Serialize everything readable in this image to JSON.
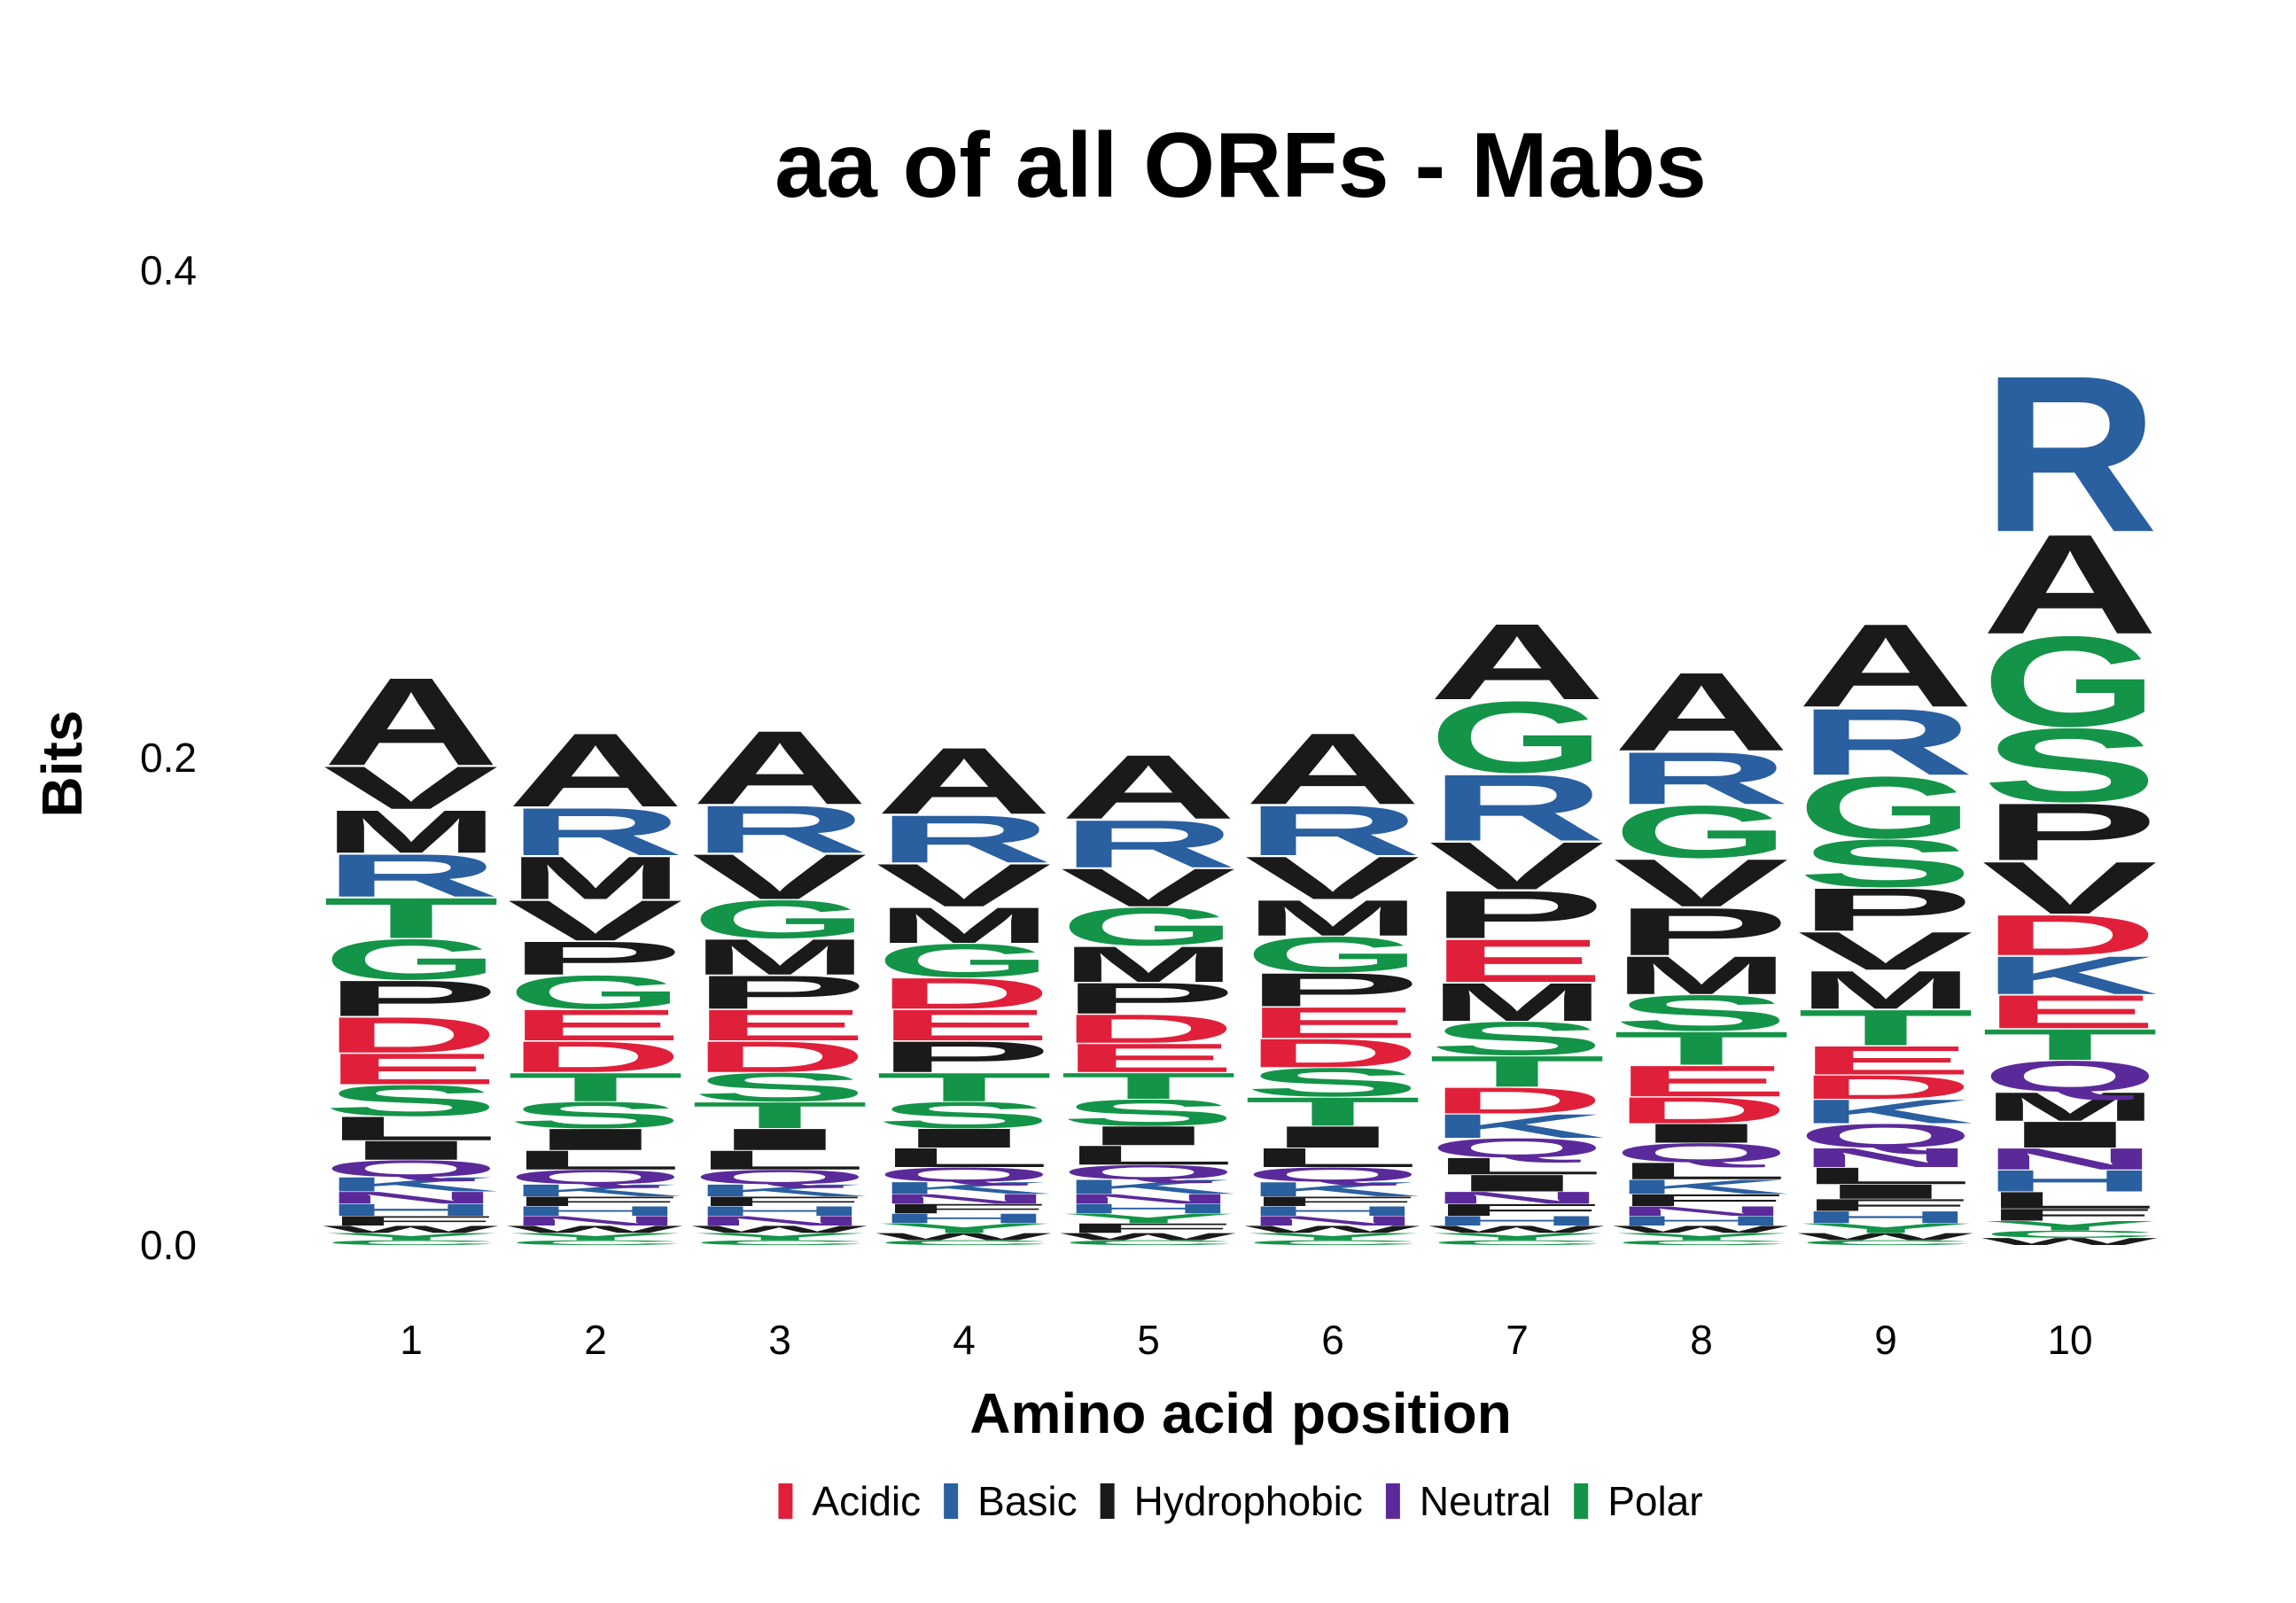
{
  "chart_data": {
    "type": "sequence-logo",
    "title": "aa of all ORFs - Mabs",
    "xlabel": "Amino acid position",
    "ylabel": "Bits",
    "ylim": [
      0,
      0.4
    ],
    "yticks": [
      "0.0",
      "0.2",
      "0.4"
    ],
    "grid": false,
    "legend_position": "bottom",
    "legend": [
      {
        "name": "Acidic",
        "color": "#e0203a"
      },
      {
        "name": "Basic",
        "color": "#2a5fa0"
      },
      {
        "name": "Hydrophobic",
        "color": "#1a1a1a"
      },
      {
        "name": "Neutral",
        "color": "#5b2a9a"
      },
      {
        "name": "Polar",
        "color": "#149448"
      }
    ],
    "groups": {
      "A": "Hydrophobic",
      "G": "Polar",
      "R": "Basic",
      "M": "Hydrophobic",
      "V": "Hydrophobic",
      "T": "Polar",
      "D": "Acidic",
      "P": "Hydrophobic",
      "S": "Polar",
      "E": "Acidic",
      "L": "Hydrophobic",
      "I": "Hydrophobic",
      "Q": "Neutral",
      "K": "Basic",
      "H": "Basic",
      "N": "Neutral",
      "F": "Hydrophobic",
      "Y": "Polar",
      "W": "Hydrophobic",
      "C": "Polar"
    },
    "positions": [
      {
        "label": "1",
        "letters": [
          {
            "aa": "A",
            "bits": 0.037
          },
          {
            "aa": "G",
            "bits": 0.017
          },
          {
            "aa": "R",
            "bits": 0.018
          },
          {
            "aa": "M",
            "bits": 0.018
          },
          {
            "aa": "V",
            "bits": 0.018
          },
          {
            "aa": "T",
            "bits": 0.017
          },
          {
            "aa": "D",
            "bits": 0.015
          },
          {
            "aa": "P",
            "bits": 0.015
          },
          {
            "aa": "S",
            "bits": 0.013
          },
          {
            "aa": "E",
            "bits": 0.013
          },
          {
            "aa": "L",
            "bits": 0.01
          },
          {
            "aa": "I",
            "bits": 0.008
          },
          {
            "aa": "Q",
            "bits": 0.007
          },
          {
            "aa": "K",
            "bits": 0.006
          },
          {
            "aa": "H",
            "bits": 0.005
          },
          {
            "aa": "N",
            "bits": 0.005
          },
          {
            "aa": "F",
            "bits": 0.004
          },
          {
            "aa": "Y",
            "bits": 0.003
          },
          {
            "aa": "W",
            "bits": 0.003
          },
          {
            "aa": "C",
            "bits": 0.002
          }
        ]
      },
      {
        "label": "2",
        "letters": [
          {
            "aa": "A",
            "bits": 0.031
          },
          {
            "aa": "R",
            "bits": 0.02
          },
          {
            "aa": "M",
            "bits": 0.018
          },
          {
            "aa": "V",
            "bits": 0.017
          },
          {
            "aa": "G",
            "bits": 0.014
          },
          {
            "aa": "P",
            "bits": 0.014
          },
          {
            "aa": "D",
            "bits": 0.013
          },
          {
            "aa": "E",
            "bits": 0.013
          },
          {
            "aa": "T",
            "bits": 0.012
          },
          {
            "aa": "S",
            "bits": 0.011
          },
          {
            "aa": "I",
            "bits": 0.009
          },
          {
            "aa": "L",
            "bits": 0.008
          },
          {
            "aa": "Q",
            "bits": 0.006
          },
          {
            "aa": "K",
            "bits": 0.005
          },
          {
            "aa": "N",
            "bits": 0.004
          },
          {
            "aa": "H",
            "bits": 0.004
          },
          {
            "aa": "F",
            "bits": 0.004
          },
          {
            "aa": "Y",
            "bits": 0.003
          },
          {
            "aa": "W",
            "bits": 0.003
          },
          {
            "aa": "C",
            "bits": 0.002
          }
        ]
      },
      {
        "label": "3",
        "letters": [
          {
            "aa": "A",
            "bits": 0.031
          },
          {
            "aa": "R",
            "bits": 0.02
          },
          {
            "aa": "V",
            "bits": 0.019
          },
          {
            "aa": "G",
            "bits": 0.016
          },
          {
            "aa": "M",
            "bits": 0.015
          },
          {
            "aa": "P",
            "bits": 0.014
          },
          {
            "aa": "D",
            "bits": 0.013
          },
          {
            "aa": "E",
            "bits": 0.013
          },
          {
            "aa": "S",
            "bits": 0.012
          },
          {
            "aa": "T",
            "bits": 0.011
          },
          {
            "aa": "I",
            "bits": 0.009
          },
          {
            "aa": "L",
            "bits": 0.008
          },
          {
            "aa": "Q",
            "bits": 0.006
          },
          {
            "aa": "K",
            "bits": 0.005
          },
          {
            "aa": "N",
            "bits": 0.004
          },
          {
            "aa": "H",
            "bits": 0.004
          },
          {
            "aa": "F",
            "bits": 0.004
          },
          {
            "aa": "Y",
            "bits": 0.003
          },
          {
            "aa": "W",
            "bits": 0.003
          },
          {
            "aa": "C",
            "bits": 0.002
          }
        ]
      },
      {
        "label": "4",
        "letters": [
          {
            "aa": "A",
            "bits": 0.028
          },
          {
            "aa": "R",
            "bits": 0.02
          },
          {
            "aa": "V",
            "bits": 0.018
          },
          {
            "aa": "M",
            "bits": 0.015
          },
          {
            "aa": "G",
            "bits": 0.014
          },
          {
            "aa": "P",
            "bits": 0.013
          },
          {
            "aa": "E",
            "bits": 0.013
          },
          {
            "aa": "T",
            "bits": 0.012
          },
          {
            "aa": "S",
            "bits": 0.011
          },
          {
            "aa": "D",
            "bits": 0.013
          },
          {
            "aa": "L",
            "bits": 0.008
          },
          {
            "aa": "I",
            "bits": 0.008
          },
          {
            "aa": "Q",
            "bits": 0.006
          },
          {
            "aa": "K",
            "bits": 0.005
          },
          {
            "aa": "Y",
            "bits": 0.004
          },
          {
            "aa": "H",
            "bits": 0.004
          },
          {
            "aa": "F",
            "bits": 0.004
          },
          {
            "aa": "N",
            "bits": 0.004
          },
          {
            "aa": "W",
            "bits": 0.003
          },
          {
            "aa": "C",
            "bits": 0.002
          }
        ]
      },
      {
        "label": "5",
        "letters": [
          {
            "aa": "A",
            "bits": 0.027
          },
          {
            "aa": "R",
            "bits": 0.02
          },
          {
            "aa": "G",
            "bits": 0.016
          },
          {
            "aa": "V",
            "bits": 0.016
          },
          {
            "aa": "M",
            "bits": 0.015
          },
          {
            "aa": "P",
            "bits": 0.013
          },
          {
            "aa": "E",
            "bits": 0.012
          },
          {
            "aa": "S",
            "bits": 0.011
          },
          {
            "aa": "T",
            "bits": 0.011
          },
          {
            "aa": "D",
            "bits": 0.012
          },
          {
            "aa": "L",
            "bits": 0.008
          },
          {
            "aa": "I",
            "bits": 0.008
          },
          {
            "aa": "K",
            "bits": 0.006
          },
          {
            "aa": "Q",
            "bits": 0.006
          },
          {
            "aa": "F",
            "bits": 0.004
          },
          {
            "aa": "Y",
            "bits": 0.004
          },
          {
            "aa": "H",
            "bits": 0.004
          },
          {
            "aa": "N",
            "bits": 0.004
          },
          {
            "aa": "W",
            "bits": 0.003
          },
          {
            "aa": "C",
            "bits": 0.002
          }
        ]
      },
      {
        "label": "6",
        "letters": [
          {
            "aa": "A",
            "bits": 0.03
          },
          {
            "aa": "R",
            "bits": 0.021
          },
          {
            "aa": "V",
            "bits": 0.018
          },
          {
            "aa": "G",
            "bits": 0.015
          },
          {
            "aa": "M",
            "bits": 0.015
          },
          {
            "aa": "P",
            "bits": 0.014
          },
          {
            "aa": "E",
            "bits": 0.013
          },
          {
            "aa": "T",
            "bits": 0.012
          },
          {
            "aa": "S",
            "bits": 0.012
          },
          {
            "aa": "D",
            "bits": 0.012
          },
          {
            "aa": "I",
            "bits": 0.009
          },
          {
            "aa": "L",
            "bits": 0.008
          },
          {
            "aa": "K",
            "bits": 0.006
          },
          {
            "aa": "Q",
            "bits": 0.006
          },
          {
            "aa": "N",
            "bits": 0.004
          },
          {
            "aa": "H",
            "bits": 0.004
          },
          {
            "aa": "F",
            "bits": 0.004
          },
          {
            "aa": "Y",
            "bits": 0.003
          },
          {
            "aa": "W",
            "bits": 0.003
          },
          {
            "aa": "C",
            "bits": 0.002
          }
        ]
      },
      {
        "label": "7",
        "letters": [
          {
            "aa": "A",
            "bits": 0.032
          },
          {
            "aa": "G",
            "bits": 0.03
          },
          {
            "aa": "R",
            "bits": 0.028
          },
          {
            "aa": "P",
            "bits": 0.02
          },
          {
            "aa": "V",
            "bits": 0.02
          },
          {
            "aa": "E",
            "bits": 0.018
          },
          {
            "aa": "M",
            "bits": 0.016
          },
          {
            "aa": "S",
            "bits": 0.014
          },
          {
            "aa": "T",
            "bits": 0.013
          },
          {
            "aa": "D",
            "bits": 0.011
          },
          {
            "aa": "K",
            "bits": 0.01
          },
          {
            "aa": "Q",
            "bits": 0.008
          },
          {
            "aa": "I",
            "bits": 0.007
          },
          {
            "aa": "L",
            "bits": 0.007
          },
          {
            "aa": "F",
            "bits": 0.005
          },
          {
            "aa": "N",
            "bits": 0.005
          },
          {
            "aa": "H",
            "bits": 0.004
          },
          {
            "aa": "Y",
            "bits": 0.003
          },
          {
            "aa": "W",
            "bits": 0.003
          },
          {
            "aa": "C",
            "bits": 0.002
          }
        ]
      },
      {
        "label": "8",
        "letters": [
          {
            "aa": "A",
            "bits": 0.033
          },
          {
            "aa": "G",
            "bits": 0.022
          },
          {
            "aa": "R",
            "bits": 0.022
          },
          {
            "aa": "P",
            "bits": 0.02
          },
          {
            "aa": "V",
            "bits": 0.02
          },
          {
            "aa": "S",
            "bits": 0.015
          },
          {
            "aa": "M",
            "bits": 0.016
          },
          {
            "aa": "T",
            "bits": 0.014
          },
          {
            "aa": "E",
            "bits": 0.013
          },
          {
            "aa": "D",
            "bits": 0.011
          },
          {
            "aa": "Q",
            "bits": 0.008
          },
          {
            "aa": "I",
            "bits": 0.008
          },
          {
            "aa": "L",
            "bits": 0.007
          },
          {
            "aa": "K",
            "bits": 0.006
          },
          {
            "aa": "F",
            "bits": 0.005
          },
          {
            "aa": "H",
            "bits": 0.004
          },
          {
            "aa": "N",
            "bits": 0.004
          },
          {
            "aa": "Y",
            "bits": 0.003
          },
          {
            "aa": "W",
            "bits": 0.003
          },
          {
            "aa": "C",
            "bits": 0.002
          }
        ]
      },
      {
        "label": "9",
        "letters": [
          {
            "aa": "A",
            "bits": 0.035
          },
          {
            "aa": "R",
            "bits": 0.028
          },
          {
            "aa": "G",
            "bits": 0.026
          },
          {
            "aa": "S",
            "bits": 0.02
          },
          {
            "aa": "P",
            "bits": 0.018
          },
          {
            "aa": "M",
            "bits": 0.016
          },
          {
            "aa": "V",
            "bits": 0.016
          },
          {
            "aa": "T",
            "bits": 0.015
          },
          {
            "aa": "E",
            "bits": 0.012
          },
          {
            "aa": "Q",
            "bits": 0.01
          },
          {
            "aa": "K",
            "bits": 0.01
          },
          {
            "aa": "D",
            "bits": 0.01
          },
          {
            "aa": "N",
            "bits": 0.008
          },
          {
            "aa": "L",
            "bits": 0.007
          },
          {
            "aa": "I",
            "bits": 0.006
          },
          {
            "aa": "H",
            "bits": 0.005
          },
          {
            "aa": "F",
            "bits": 0.005
          },
          {
            "aa": "Y",
            "bits": 0.004
          },
          {
            "aa": "W",
            "bits": 0.003
          },
          {
            "aa": "C",
            "bits": 0.002
          }
        ]
      },
      {
        "label": "10",
        "letters": [
          {
            "aa": "R",
            "bits": 0.066
          },
          {
            "aa": "A",
            "bits": 0.042
          },
          {
            "aa": "G",
            "bits": 0.038
          },
          {
            "aa": "S",
            "bits": 0.031
          },
          {
            "aa": "P",
            "bits": 0.024
          },
          {
            "aa": "V",
            "bits": 0.022
          },
          {
            "aa": "D",
            "bits": 0.017
          },
          {
            "aa": "K",
            "bits": 0.016
          },
          {
            "aa": "E",
            "bits": 0.014
          },
          {
            "aa": "Q",
            "bits": 0.013
          },
          {
            "aa": "T",
            "bits": 0.013
          },
          {
            "aa": "M",
            "bits": 0.012
          },
          {
            "aa": "I",
            "bits": 0.011
          },
          {
            "aa": "H",
            "bits": 0.009
          },
          {
            "aa": "N",
            "bits": 0.009
          },
          {
            "aa": "L",
            "bits": 0.007
          },
          {
            "aa": "F",
            "bits": 0.005
          },
          {
            "aa": "Y",
            "bits": 0.004
          },
          {
            "aa": "W",
            "bits": 0.003
          },
          {
            "aa": "C",
            "bits": 0.003
          }
        ]
      }
    ]
  }
}
